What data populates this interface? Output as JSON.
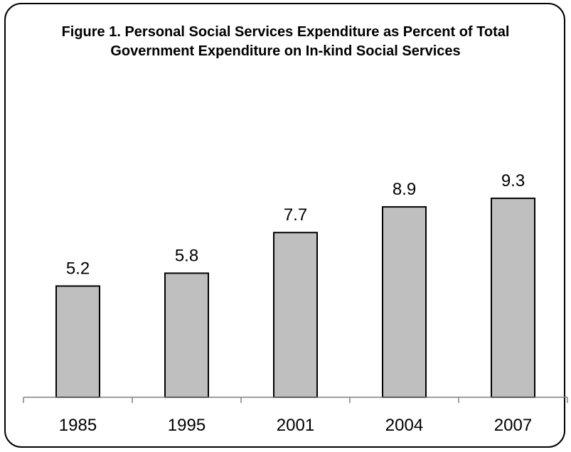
{
  "chart_data": {
    "type": "bar",
    "title": "Figure 1. Personal Social Services Expenditure as Percent of Total Government Expenditure on In-kind Social Services",
    "categories": [
      "1985",
      "1995",
      "2001",
      "2004",
      "2007"
    ],
    "values": [
      5.2,
      5.8,
      7.7,
      8.9,
      9.3
    ],
    "value_labels": [
      "5.2",
      "5.8",
      "7.7",
      "8.9",
      "9.3"
    ],
    "xlabel": "",
    "ylabel": "",
    "ylim": [
      0,
      10
    ],
    "grid": false,
    "legend": "none",
    "colors": {
      "bar_fill": "#bfbfbf",
      "bar_stroke": "#000000",
      "axis": "#808080"
    }
  }
}
